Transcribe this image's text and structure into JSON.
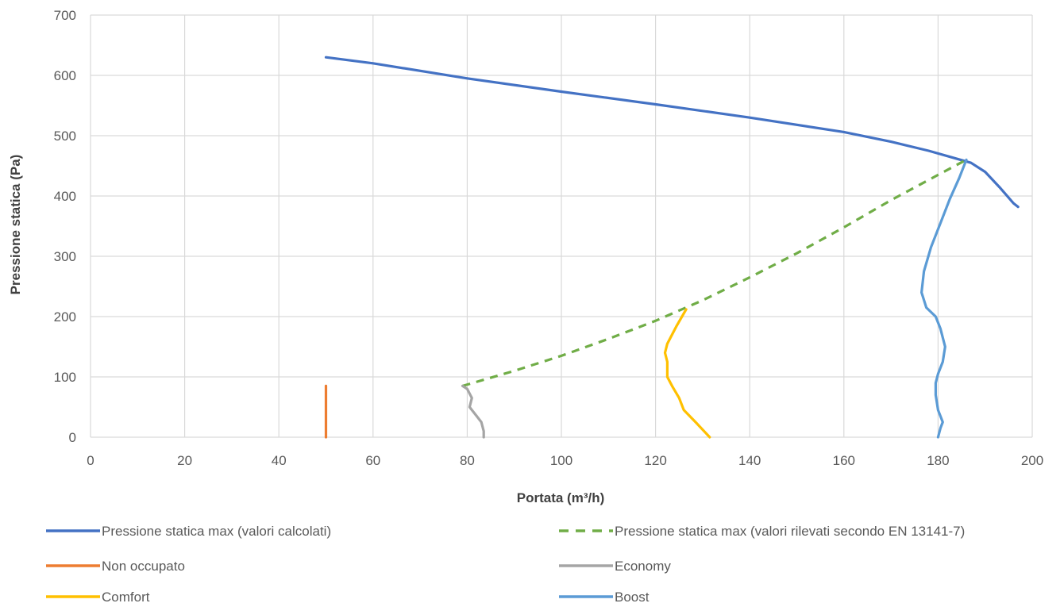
{
  "chart_data": {
    "type": "line",
    "xlabel": "Portata (m³/h)",
    "ylabel": "Pressione statica  (Pa)",
    "xlim": [
      0,
      200
    ],
    "ylim": [
      0,
      700
    ],
    "x_ticks": [
      0,
      20,
      40,
      60,
      80,
      100,
      120,
      140,
      160,
      180,
      200
    ],
    "y_ticks": [
      0,
      100,
      200,
      300,
      400,
      500,
      600,
      700
    ],
    "grid": true,
    "legend_position": "bottom",
    "series": [
      {
        "name": "Pressione statica max (valori calcolati)",
        "color": "#4472C4",
        "dash": false,
        "points": [
          [
            50,
            630
          ],
          [
            60,
            620
          ],
          [
            80,
            595
          ],
          [
            100,
            573
          ],
          [
            120,
            552
          ],
          [
            140,
            530
          ],
          [
            160,
            506
          ],
          [
            170,
            490
          ],
          [
            178,
            475
          ],
          [
            183,
            464
          ],
          [
            187,
            455
          ],
          [
            190,
            440
          ],
          [
            193,
            415
          ],
          [
            196,
            388
          ],
          [
            197,
            382
          ]
        ]
      },
      {
        "name": "Pressione statica max (valori rilevati secondo EN 13141-7)",
        "color": "#70AD47",
        "dash": true,
        "points": [
          [
            79,
            85
          ],
          [
            90,
            110
          ],
          [
            100,
            135
          ],
          [
            110,
            163
          ],
          [
            120,
            193
          ],
          [
            130,
            227
          ],
          [
            140,
            265
          ],
          [
            150,
            305
          ],
          [
            160,
            348
          ],
          [
            170,
            393
          ],
          [
            180,
            435
          ],
          [
            186,
            460
          ]
        ]
      },
      {
        "name": "Non occupato",
        "color": "#ED7D31",
        "dash": false,
        "points": [
          [
            50,
            0
          ],
          [
            50,
            85
          ]
        ]
      },
      {
        "name": "Economy",
        "color": "#A5A5A5",
        "dash": false,
        "points": [
          [
            83.5,
            0
          ],
          [
            83.5,
            10
          ],
          [
            83,
            25
          ],
          [
            82,
            35
          ],
          [
            81,
            45
          ],
          [
            80.5,
            50
          ],
          [
            81,
            65
          ],
          [
            80,
            80
          ],
          [
            79,
            85
          ]
        ]
      },
      {
        "name": "Comfort",
        "color": "#FFC000",
        "dash": false,
        "points": [
          [
            131.5,
            0
          ],
          [
            128.5,
            25
          ],
          [
            126,
            45
          ],
          [
            125,
            65
          ],
          [
            123.5,
            85
          ],
          [
            122.5,
            100
          ],
          [
            122.5,
            125
          ],
          [
            122,
            140
          ],
          [
            122.5,
            155
          ],
          [
            124.5,
            185
          ],
          [
            126.5,
            212
          ]
        ]
      },
      {
        "name": "Boost",
        "color": "#5B9BD5",
        "dash": false,
        "points": [
          [
            180,
            0
          ],
          [
            180.5,
            15
          ],
          [
            181,
            25
          ],
          [
            180.5,
            35
          ],
          [
            180,
            45
          ],
          [
            179.5,
            70
          ],
          [
            179.5,
            90
          ],
          [
            180,
            105
          ],
          [
            181,
            125
          ],
          [
            181.5,
            150
          ],
          [
            180.5,
            180
          ],
          [
            179.5,
            200
          ],
          [
            177.5,
            215
          ],
          [
            176.5,
            240
          ],
          [
            177,
            275
          ],
          [
            178.5,
            315
          ],
          [
            180.5,
            355
          ],
          [
            182.5,
            395
          ],
          [
            184.5,
            430
          ],
          [
            186,
            460
          ]
        ]
      }
    ]
  }
}
